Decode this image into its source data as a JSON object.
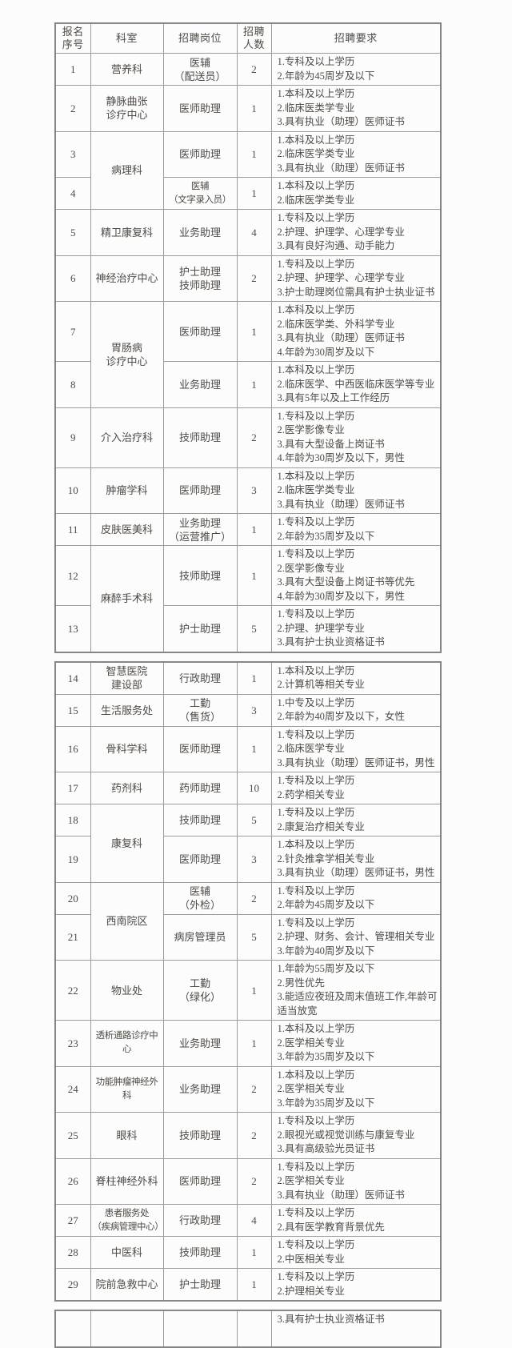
{
  "columns": [
    "报名\n序号",
    "科室",
    "招聘岗位",
    "招聘\n人数",
    "招聘要求"
  ],
  "colors": {
    "border_inner": "#9b9b9b",
    "border_outer": "#868686",
    "text": "#4f4a45",
    "background": "#fcfcfc"
  },
  "sections": [
    {
      "header": true,
      "rows": [
        {
          "no": "1",
          "dept": "营养科",
          "pos": "医辅\n（配送员）",
          "count": "2",
          "reqs": [
            "1.专科及以上学历",
            "2.年龄为45周岁及以下"
          ]
        },
        {
          "no": "2",
          "dept": "静脉曲张\n诊疗中心",
          "pos": "医师助理",
          "count": "1",
          "reqs": [
            "1.本科及以上学历",
            "2.临床医类学专业",
            "3.具有执业（助理）医师证书"
          ]
        },
        {
          "no": "3",
          "dept": "病理科",
          "dept_rowspan": 2,
          "pos": "医师助理",
          "count": "1",
          "reqs": [
            "1.本科及以上学历",
            "2.临床医学类专业",
            "3.具有执业（助理）医师证书"
          ]
        },
        {
          "no": "4",
          "dept": null,
          "pos": "医辅\n（文字录入员）",
          "count": "1",
          "reqs": [
            "1.本科及以上学历",
            "2.临床医学类专业"
          ]
        },
        {
          "no": "5",
          "dept": "精卫康复科",
          "pos": "业务助理",
          "count": "4",
          "reqs": [
            "1.专科及以上学历",
            "2.护理、护理学、心理学专业",
            "3.具有良好沟通、动手能力"
          ]
        },
        {
          "no": "6",
          "dept": "神经治疗中心",
          "pos": "护士助理\n技师助理",
          "count": "2",
          "reqs": [
            "1.专科及以上学历",
            "2.护理、护理学、心理学专业",
            "3.护士助理岗位需具有护士执业证书"
          ]
        },
        {
          "no": "7",
          "dept": "胃肠病\n诊疗中心",
          "dept_rowspan": 2,
          "pos": "医师助理",
          "count": "1",
          "reqs": [
            "1.本科及以上学历",
            "2.临床医学类、外科学专业",
            "3.具有执业（助理）医师证书",
            "4.年龄为30周岁及以下"
          ]
        },
        {
          "no": "8",
          "dept": null,
          "pos": "业务助理",
          "count": "1",
          "reqs": [
            "1.本科及以上学历",
            "2.临床医学、中西医临床医学等专业",
            "3.具有5年以及上工作经历"
          ]
        },
        {
          "no": "9",
          "dept": "介入治疗科",
          "pos": "技师助理",
          "count": "2",
          "reqs": [
            "1.专科及以上学历",
            "2.医学影像专业",
            "3.具有大型设备上岗证书",
            "4.年龄为30周岁及以下，男性"
          ]
        },
        {
          "no": "10",
          "dept": "肿瘤学科",
          "pos": "医师助理",
          "count": "3",
          "reqs": [
            "1.本科及以上学历",
            "2.临床医学类专业",
            "3.具有执业（助理）医师证书"
          ]
        },
        {
          "no": "11",
          "dept": "皮肤医美科",
          "pos": "业务助理\n（运营推广）",
          "count": "1",
          "reqs": [
            "1.专科及以上学历",
            "2.年龄为35周岁及以下"
          ]
        },
        {
          "no": "12",
          "dept": "麻醉手术科",
          "dept_rowspan": 2,
          "pos": "技师助理",
          "count": "1",
          "reqs": [
            "1.专科及以上学历",
            "2.医学影像专业",
            "3.具有大型设备上岗证书等优先",
            "4.年龄为30周岁及以下，男性"
          ]
        },
        {
          "no": "13",
          "dept": null,
          "pos": "护士助理",
          "count": "5",
          "reqs": [
            "1.专科及以上学历",
            "2.护理、护理学专业",
            "3.具有护士执业资格证书"
          ]
        }
      ]
    },
    {
      "header": false,
      "rows": [
        {
          "no": "14",
          "dept": "智慧医院\n建设部",
          "pos": "行政助理",
          "count": "1",
          "reqs": [
            "1.本科及以上学历",
            "2.计算机等相关专业"
          ]
        },
        {
          "no": "15",
          "dept": "生活服务处",
          "pos": "工勤\n（售货）",
          "count": "3",
          "reqs": [
            "1.中专及以上学历",
            "2.年龄为40周岁及以下，女性"
          ]
        },
        {
          "no": "16",
          "dept": "骨科学科",
          "pos": "医师助理",
          "count": "1",
          "reqs": [
            "1.专科及以上学历",
            "2.临床医学专业",
            "3.具有执业（助理）医师证书，男性"
          ]
        },
        {
          "no": "17",
          "dept": "药剂科",
          "pos": "药师助理",
          "count": "10",
          "reqs": [
            "1.专科及以上学历",
            "2.药学相关专业"
          ]
        },
        {
          "no": "18",
          "dept": "康复科",
          "dept_rowspan": 2,
          "pos": "技师助理",
          "count": "5",
          "reqs": [
            "1.专科及以上学历",
            "2.康复治疗相关专业"
          ]
        },
        {
          "no": "19",
          "dept": null,
          "pos": "医师助理",
          "count": "3",
          "reqs": [
            "1.本科及以上学历",
            "2.针灸推拿学相关专业",
            "3.具有执业（助理）医师证书，男性"
          ]
        },
        {
          "no": "20",
          "dept": "西南院区",
          "dept_rowspan": 2,
          "pos": "医辅\n（外检）",
          "count": "2",
          "reqs": [
            "1.专科及以上学历",
            "2.年龄为45周岁及以下"
          ]
        },
        {
          "no": "21",
          "dept": null,
          "pos": "病房管理员",
          "count": "5",
          "reqs": [
            "1.专科及以上学历",
            "2.护理、财务、会计、管理相关专业",
            "3.年龄为40周岁及以下"
          ]
        },
        {
          "no": "22",
          "dept": "物业处",
          "pos": "工勤\n（绿化）",
          "count": "1",
          "reqs": [
            "1.年龄为55周岁及以下",
            "2.男性优先",
            "3.能适应夜班及周末值班工作,年龄可适当放宽"
          ]
        },
        {
          "no": "23",
          "dept": "透析通路诊疗中心",
          "pos": "业务助理",
          "count": "1",
          "reqs": [
            "1.本科及以上学历",
            "2.医学相关专业",
            "3.年龄为35周岁及以下"
          ]
        },
        {
          "no": "24",
          "dept": "功能肿瘤神经外科",
          "pos": "业务助理",
          "count": "2",
          "reqs": [
            "1.本科及以上学历",
            "2.医学相关专业",
            "3.年龄为35周岁及以下"
          ]
        },
        {
          "no": "25",
          "dept": "眼科",
          "pos": "技师助理",
          "count": "2",
          "reqs": [
            "1.专科及以上学历",
            "2.眼视光或视觉训练与康复专业",
            "3.具有高级验光员证书"
          ]
        },
        {
          "no": "26",
          "dept": "脊柱神经外科",
          "pos": "医师助理",
          "count": "2",
          "reqs": [
            "1.专科及以上学历",
            "2.医学相关专业",
            "3.具有执业（助理）医师证书"
          ]
        },
        {
          "no": "27",
          "dept": "患者服务处\n（疾病管理中心）",
          "pos": "行政助理",
          "count": "4",
          "reqs": [
            "1.专科及以上学历",
            "2.具有医学教育背景优先"
          ]
        },
        {
          "no": "28",
          "dept": "中医科",
          "pos": "技师助理",
          "count": "1",
          "reqs": [
            "1.专科及以上学历",
            "2.中医相关专业"
          ]
        },
        {
          "no": "29",
          "dept": "院前急救中心",
          "pos": "护士助理",
          "count": "1",
          "reqs": [
            "1.专科及以上学历",
            "2.护理相关专业"
          ]
        }
      ]
    },
    {
      "header": false,
      "rows": [
        {
          "no": "",
          "dept": "",
          "pos": "",
          "count": "",
          "reqs": [
            "3.具有护士执业资格证书"
          ],
          "tall": true
        }
      ]
    }
  ]
}
